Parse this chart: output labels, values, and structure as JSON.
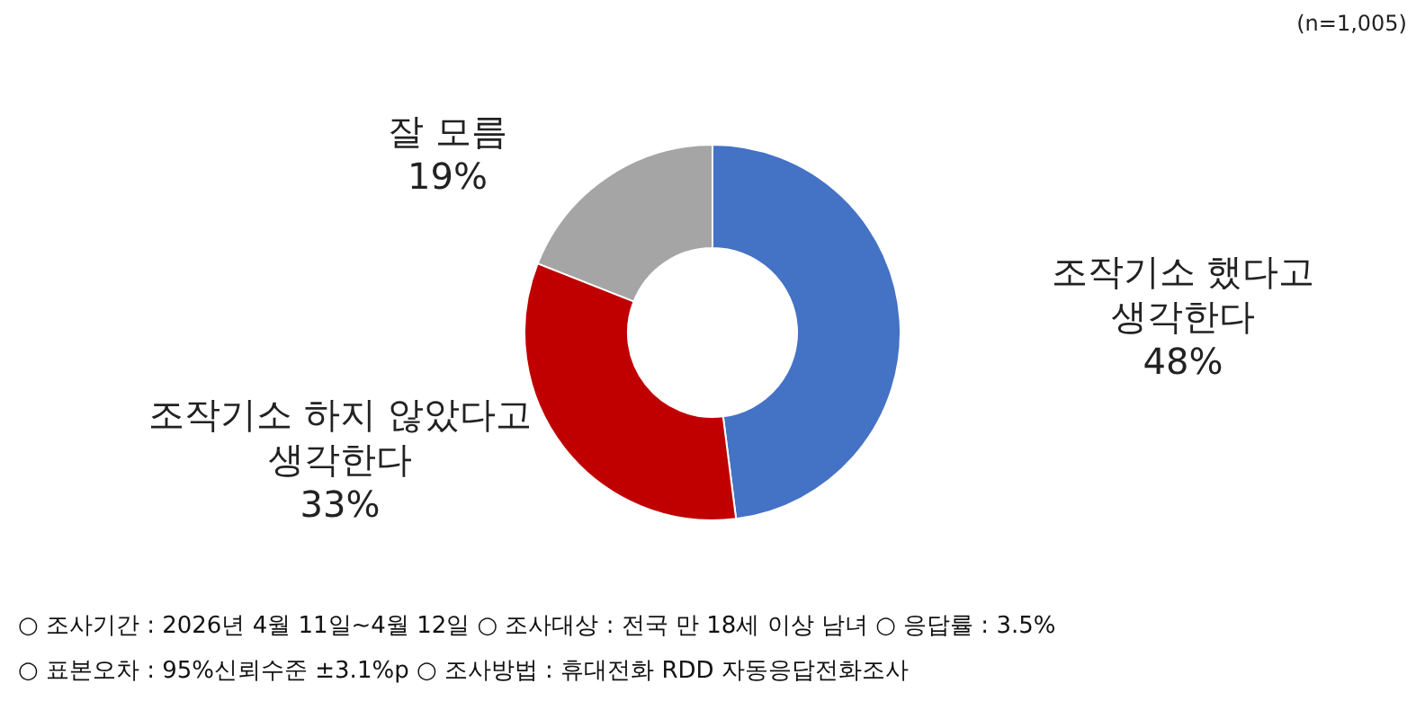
{
  "chart_data": {
    "type": "donut",
    "categories": [
      "조작기소 했다고 생각한다",
      "조작기소 하지 않았다고 생각한다",
      "잘 모름"
    ],
    "values": [
      48,
      33,
      19
    ],
    "value_labels": [
      "48%",
      "33%",
      "19%"
    ],
    "colors": [
      "#4472c4",
      "#c00000",
      "#a5a5a5"
    ],
    "legend": false,
    "annotations": [
      "(n=1,005)",
      "○ 조사기간 : 2026년 4월 11일~4월 12일 ○ 조사대상 : 전국 만 18세 이상 남녀 ○ 응답률 : 3.5%",
      "○ 표본오차 : 95%신뢰수준 ±3.1%p ○ 조사방법 : 휴대전화 RDD 자동응답전화조사"
    ]
  }
}
